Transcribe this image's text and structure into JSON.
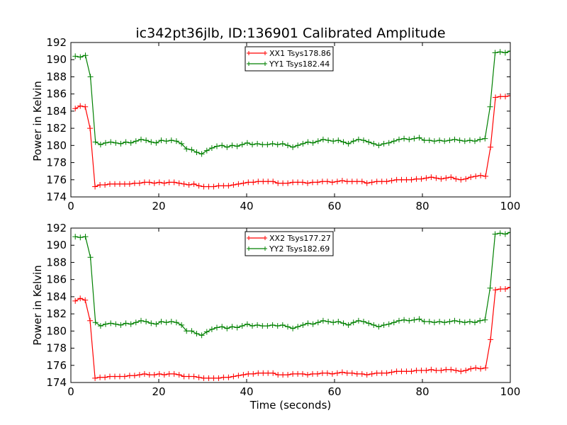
{
  "chart_data": [
    {
      "type": "line",
      "title": "ic342pt36jlb, ID:136901 Calibrated Amplitude",
      "xlabel": "",
      "ylabel": "Power in Kelvin",
      "xlim": [
        0,
        100
      ],
      "ylim": [
        174,
        192
      ],
      "xticks": [
        0,
        20,
        40,
        60,
        80,
        100
      ],
      "yticks": [
        174,
        176,
        178,
        180,
        182,
        184,
        186,
        188,
        190,
        192
      ],
      "grid": false,
      "legend_position": "top-center",
      "series": [
        {
          "name": "XX1 Tsys178.86",
          "color": "#ff0000",
          "values": [
            184.3,
            184.6,
            184.5,
            182.0,
            175.2,
            175.4,
            175.4,
            175.5,
            175.5,
            175.5,
            175.5,
            175.5,
            175.6,
            175.6,
            175.7,
            175.7,
            175.6,
            175.7,
            175.6,
            175.7,
            175.7,
            175.6,
            175.5,
            175.4,
            175.5,
            175.3,
            175.2,
            175.2,
            175.2,
            175.3,
            175.3,
            175.3,
            175.4,
            175.5,
            175.6,
            175.7,
            175.7,
            175.8,
            175.8,
            175.8,
            175.8,
            175.6,
            175.6,
            175.6,
            175.7,
            175.7,
            175.7,
            175.6,
            175.7,
            175.7,
            175.8,
            175.8,
            175.7,
            175.8,
            175.9,
            175.8,
            175.8,
            175.8,
            175.8,
            175.6,
            175.7,
            175.8,
            175.8,
            175.8,
            175.9,
            176.0,
            176.0,
            176.0,
            176.0,
            176.1,
            176.1,
            176.2,
            176.3,
            176.2,
            176.1,
            176.2,
            176.3,
            176.1,
            176.0,
            176.1,
            176.3,
            176.4,
            176.5,
            176.4,
            179.8,
            185.6,
            185.7,
            185.7,
            185.8
          ]
        },
        {
          "name": "YY1 Tsys182.44",
          "color": "#008000",
          "values": [
            190.4,
            190.3,
            190.5,
            188.0,
            180.4,
            180.1,
            180.3,
            180.4,
            180.3,
            180.2,
            180.4,
            180.3,
            180.5,
            180.7,
            180.6,
            180.4,
            180.3,
            180.6,
            180.5,
            180.6,
            180.5,
            180.2,
            179.6,
            179.5,
            179.2,
            179.0,
            179.4,
            179.7,
            179.9,
            180.0,
            179.8,
            180.0,
            179.9,
            180.1,
            180.3,
            180.1,
            180.2,
            180.1,
            180.1,
            180.2,
            180.1,
            180.2,
            180.0,
            179.8,
            180.0,
            180.2,
            180.4,
            180.3,
            180.5,
            180.7,
            180.6,
            180.5,
            180.6,
            180.4,
            180.2,
            180.5,
            180.7,
            180.6,
            180.4,
            180.2,
            180.0,
            180.2,
            180.3,
            180.5,
            180.7,
            180.8,
            180.7,
            180.8,
            180.9,
            180.6,
            180.6,
            180.5,
            180.6,
            180.5,
            180.6,
            180.7,
            180.6,
            180.5,
            180.6,
            180.5,
            180.7,
            180.8,
            184.5,
            190.8,
            190.9,
            190.8,
            191.0
          ]
        }
      ]
    },
    {
      "type": "line",
      "title": "",
      "xlabel": "Time (seconds)",
      "ylabel": "Power in Kelvin",
      "xlim": [
        0,
        100
      ],
      "ylim": [
        174,
        192
      ],
      "xticks": [
        0,
        20,
        40,
        60,
        80,
        100
      ],
      "yticks": [
        174,
        176,
        178,
        180,
        182,
        184,
        186,
        188,
        190,
        192
      ],
      "grid": false,
      "legend_position": "top-center",
      "series": [
        {
          "name": "XX2 Tsys177.27",
          "color": "#ff0000",
          "values": [
            183.5,
            183.8,
            183.6,
            181.2,
            174.5,
            174.6,
            174.6,
            174.7,
            174.7,
            174.7,
            174.7,
            174.8,
            174.8,
            174.9,
            175.0,
            174.9,
            174.9,
            175.0,
            174.9,
            175.0,
            175.0,
            174.9,
            174.7,
            174.7,
            174.7,
            174.6,
            174.5,
            174.5,
            174.5,
            174.5,
            174.6,
            174.6,
            174.7,
            174.8,
            174.9,
            175.0,
            175.0,
            175.1,
            175.1,
            175.1,
            175.1,
            174.9,
            174.9,
            174.9,
            175.0,
            175.0,
            175.0,
            174.9,
            175.0,
            175.0,
            175.1,
            175.1,
            175.0,
            175.1,
            175.2,
            175.1,
            175.1,
            175.0,
            175.0,
            174.9,
            175.0,
            175.1,
            175.1,
            175.1,
            175.2,
            175.3,
            175.3,
            175.3,
            175.3,
            175.4,
            175.4,
            175.4,
            175.5,
            175.4,
            175.4,
            175.5,
            175.5,
            175.4,
            175.3,
            175.4,
            175.6,
            175.7,
            175.6,
            175.7,
            179.0,
            184.8,
            184.9,
            184.9,
            185.1
          ]
        },
        {
          "name": "YY2 Tsys182.69",
          "color": "#008000",
          "values": [
            191.0,
            190.9,
            191.0,
            188.6,
            181.0,
            180.6,
            180.8,
            180.9,
            180.8,
            180.7,
            180.9,
            180.8,
            181.0,
            181.2,
            181.1,
            180.9,
            180.8,
            181.1,
            181.0,
            181.1,
            181.0,
            180.7,
            180.0,
            180.0,
            179.7,
            179.5,
            179.9,
            180.2,
            180.4,
            180.5,
            180.3,
            180.5,
            180.4,
            180.6,
            180.8,
            180.6,
            180.7,
            180.6,
            180.6,
            180.7,
            180.6,
            180.7,
            180.5,
            180.3,
            180.5,
            180.7,
            180.9,
            180.8,
            181.0,
            181.2,
            181.1,
            181.0,
            181.1,
            180.9,
            180.7,
            181.0,
            181.2,
            181.1,
            180.9,
            180.7,
            180.5,
            180.7,
            180.8,
            181.0,
            181.2,
            181.3,
            181.2,
            181.3,
            181.4,
            181.1,
            181.1,
            181.0,
            181.1,
            181.0,
            181.1,
            181.2,
            181.1,
            181.0,
            181.1,
            181.0,
            181.2,
            181.3,
            185.0,
            191.3,
            191.4,
            191.3,
            191.5
          ]
        }
      ]
    }
  ]
}
